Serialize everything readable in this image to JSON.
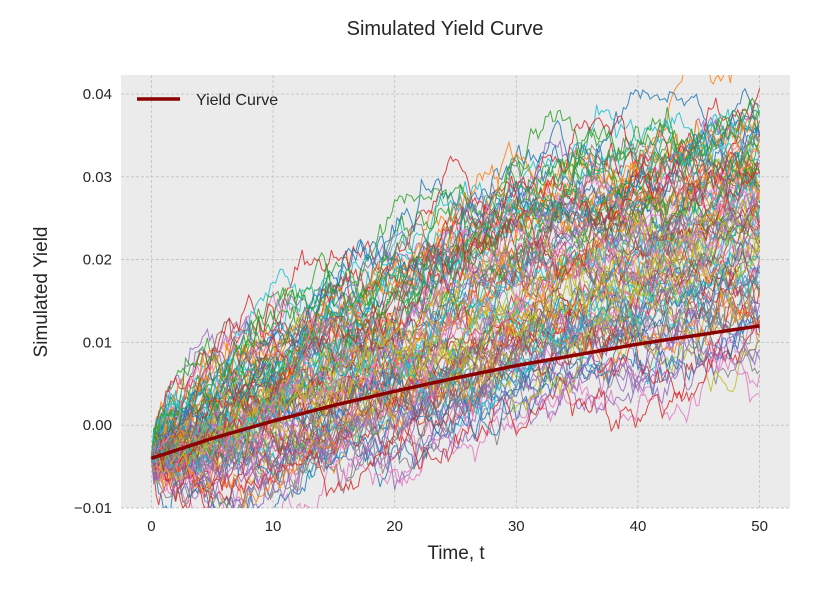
{
  "chart_data": {
    "type": "line",
    "title": "Simulated Yield Curve",
    "xlabel": "Time, t",
    "ylabel": "Simulated Yield",
    "xlim": [
      -2.5,
      52.5
    ],
    "ylim": [
      -0.01,
      0.0423
    ],
    "x_ticks": [
      0,
      10,
      20,
      30,
      40,
      50
    ],
    "x_tick_labels": [
      "0",
      "10",
      "20",
      "30",
      "40",
      "50"
    ],
    "y_ticks": [
      -0.01,
      0.0,
      0.01,
      0.02,
      0.03,
      0.04
    ],
    "y_tick_labels": [
      "−0.01",
      "0.00",
      "0.01",
      "0.02",
      "0.03",
      "0.04"
    ],
    "grid": true,
    "legend_position": "top-left",
    "series": [
      {
        "name": "Yield Curve",
        "color": "#8b0000",
        "x": [
          0,
          5,
          10,
          15,
          20,
          25,
          30,
          35,
          40,
          45,
          50
        ],
        "values": [
          -0.004,
          -0.0016,
          0.0005,
          0.0024,
          0.0041,
          0.0057,
          0.0072,
          0.0085,
          0.0098,
          0.0109,
          0.012
        ]
      }
    ],
    "simulation_band": {
      "description_color_cycle": [
        "#1f77b4",
        "#ff7f0e",
        "#2ca02c",
        "#d62728",
        "#9467bd",
        "#8c564b",
        "#e377c2",
        "#7f7f7f",
        "#bcbd22",
        "#17becf"
      ],
      "start_value": -0.004,
      "x": [
        0,
        5,
        10,
        15,
        20,
        25,
        30,
        35,
        40,
        45,
        50
      ],
      "upper": [
        -0.002,
        0.006,
        0.012,
        0.017,
        0.022,
        0.026,
        0.03,
        0.033,
        0.035,
        0.037,
        0.039
      ],
      "lower": [
        -0.005,
        -0.0075,
        -0.007,
        -0.006,
        -0.004,
        -0.001,
        0.002,
        0.004,
        0.006,
        0.008,
        0.01
      ]
    }
  }
}
